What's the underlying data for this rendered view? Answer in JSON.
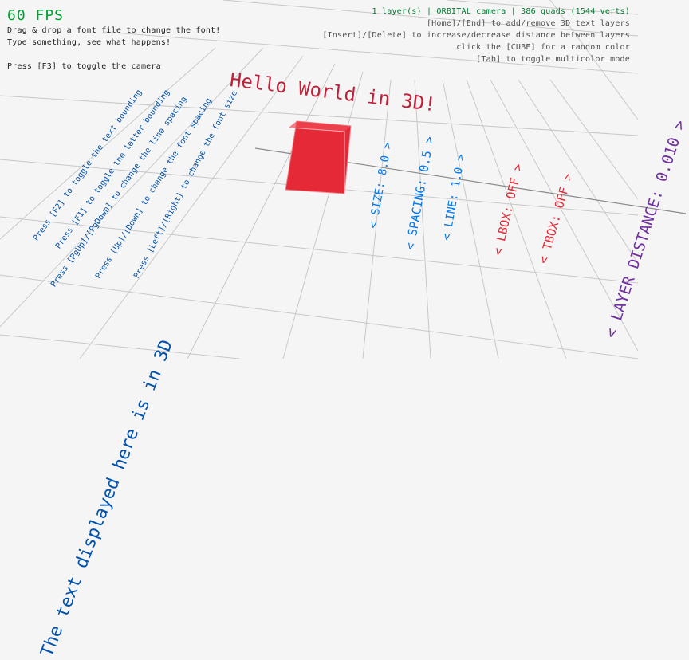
{
  "hud": {
    "fps": "60 FPS",
    "help_lines": [
      "Drag & drop a font file to change the font!",
      "Type something, see what happens!",
      "Press [F3] to toggle the camera"
    ],
    "status": "1 layer(s) | ORBITAL camera |  386 quads (1544 verts)",
    "right_lines": [
      "[Home]/[End] to add/remove 3D text layers",
      "[Insert]/[Delete] to increase/decrease distance between layers",
      "click the [CUBE] for a random color",
      "[Tab] to toggle multicolor mode"
    ]
  },
  "scene": {
    "title_text": "Hello World in 3D!",
    "main_text": "The text displayed here is in 3D",
    "instructions": [
      "Press [F2] to toggle the text bounding",
      "Press [F1] to toggle the letter bounding",
      "Press [PgUp]/[PgDown] to change the line spacing",
      "Press [Up]/[Down] to change the font spacing",
      "Press [Left]/[Right] to change the font size"
    ],
    "settings": {
      "size": "< SIZE: 8.0 >",
      "spacing": "< SPACING: 0.5 >",
      "line": "< LINE: 1.0 >",
      "lbox": "< LBOX: OFF >",
      "tbox": "< TBOX: OFF >",
      "layer_distance": "< LAYER DISTANCE: 0.010 >"
    }
  },
  "colors": {
    "fps": "#00a030",
    "status": "#007a30",
    "cube": "#e62937",
    "title": "#be2139",
    "text_blue": "#0052ac",
    "settings_blue": "#0079f1",
    "settings_red": "#e62937",
    "settings_purple": "#7030a0"
  }
}
